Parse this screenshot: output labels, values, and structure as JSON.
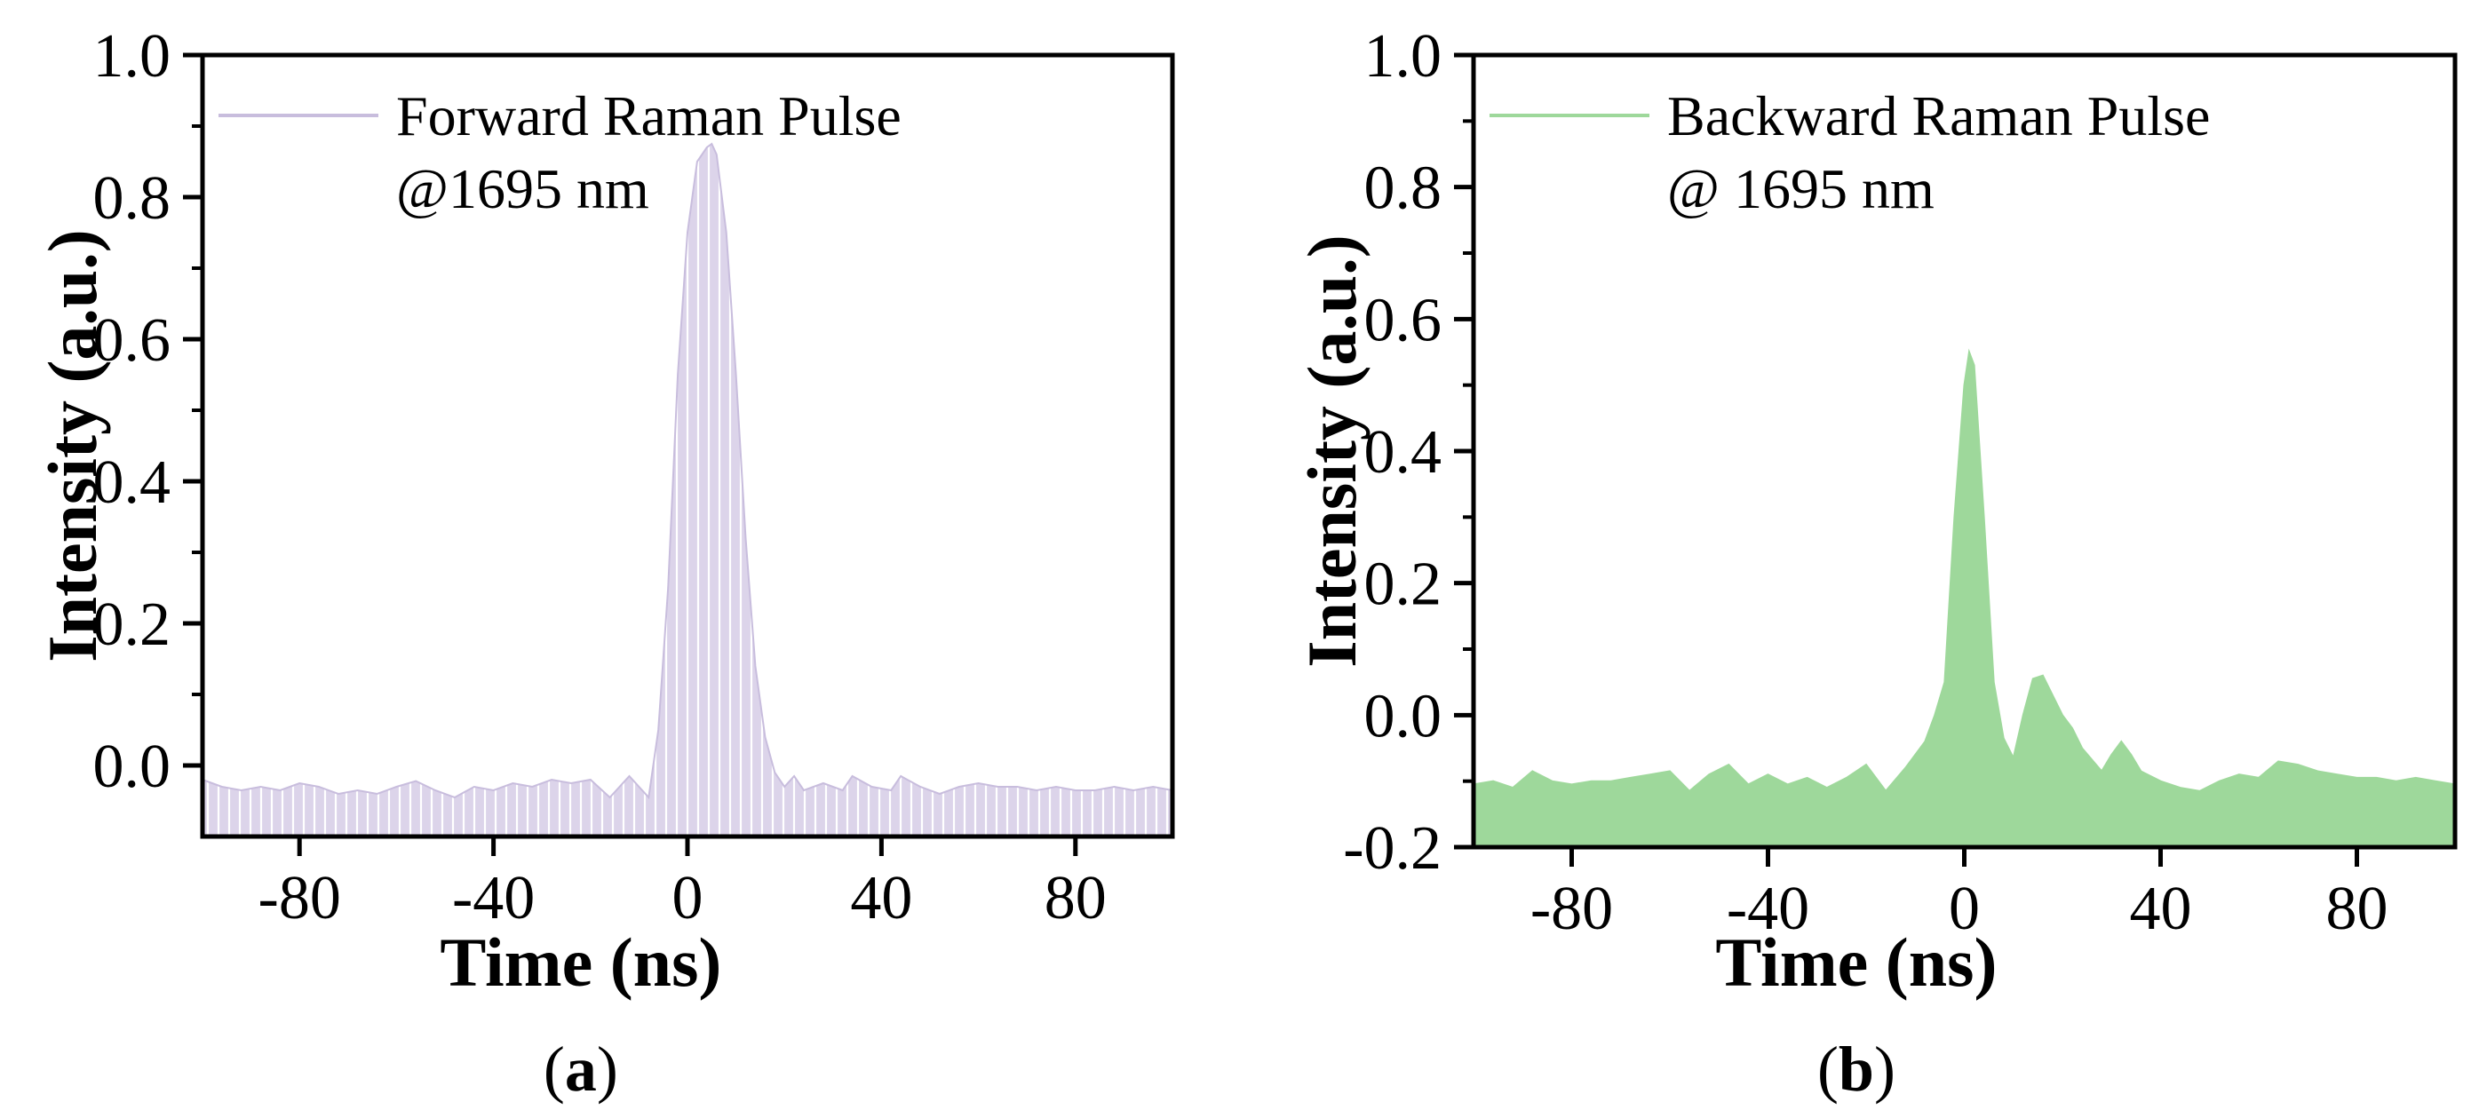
{
  "chart_data": [
    {
      "type": "area",
      "panel_label": "(a)",
      "panel_letter": "a",
      "xlabel": "Time (ns)",
      "ylabel": "Intensity (a.u.)",
      "xlim": [
        -100,
        100
      ],
      "ylim": [
        -0.1,
        1.0
      ],
      "xticks": [
        -80,
        -40,
        0,
        40,
        80
      ],
      "xtick_labels": [
        "-80",
        "-40",
        "0",
        "40",
        "80"
      ],
      "yticks": [
        0.0,
        0.2,
        0.4,
        0.6,
        0.8,
        1.0
      ],
      "ytick_labels": [
        "0.0",
        "0.2",
        "0.4",
        "0.6",
        "0.8",
        "1.0"
      ],
      "legend": {
        "position": "top-left",
        "entries": [
          "Forward Raman Pulse",
          "@1695 nm"
        ]
      },
      "color": "#d9d1e8",
      "edge_color": "#c8bddd",
      "hatched": true,
      "series": [
        {
          "name": "Forward Raman Pulse @1695 nm",
          "x": [
            -100,
            -96,
            -92,
            -88,
            -84,
            -80,
            -76,
            -72,
            -68,
            -64,
            -60,
            -56,
            -52,
            -48,
            -44,
            -40,
            -36,
            -32,
            -28,
            -24,
            -20,
            -16,
            -12,
            -8,
            -6,
            -4,
            -2,
            0,
            2,
            4,
            5,
            6,
            8,
            10,
            12,
            14,
            16,
            18,
            20,
            22,
            24,
            28,
            32,
            34,
            38,
            42,
            44,
            48,
            52,
            56,
            60,
            64,
            68,
            72,
            76,
            80,
            84,
            88,
            92,
            96,
            100
          ],
          "values": [
            -0.02,
            -0.03,
            -0.035,
            -0.03,
            -0.035,
            -0.025,
            -0.03,
            -0.04,
            -0.035,
            -0.04,
            -0.03,
            -0.022,
            -0.035,
            -0.045,
            -0.03,
            -0.035,
            -0.025,
            -0.03,
            -0.02,
            -0.025,
            -0.02,
            -0.045,
            -0.015,
            -0.045,
            0.05,
            0.25,
            0.55,
            0.75,
            0.85,
            0.87,
            0.875,
            0.86,
            0.75,
            0.55,
            0.32,
            0.14,
            0.04,
            -0.01,
            -0.03,
            -0.015,
            -0.035,
            -0.025,
            -0.035,
            -0.015,
            -0.03,
            -0.035,
            -0.015,
            -0.03,
            -0.04,
            -0.03,
            -0.025,
            -0.03,
            -0.03,
            -0.035,
            -0.03,
            -0.035,
            -0.035,
            -0.03,
            -0.035,
            -0.03,
            -0.035
          ]
        }
      ]
    },
    {
      "type": "area",
      "panel_label": "(b)",
      "panel_letter": "b",
      "xlabel": "Time (ns)",
      "ylabel": "Intensity (a.u.)",
      "xlim": [
        -100,
        100
      ],
      "ylim": [
        -0.2,
        1.0
      ],
      "xticks": [
        -80,
        -40,
        0,
        40,
        80
      ],
      "xtick_labels": [
        "-80",
        "-40",
        "0",
        "40",
        "80"
      ],
      "yticks": [
        -0.2,
        0.0,
        0.2,
        0.4,
        0.6,
        0.8,
        1.0
      ],
      "ytick_labels": [
        "-0.2",
        "0.0",
        "0.2",
        "0.4",
        "0.6",
        "0.8",
        "1.0"
      ],
      "legend": {
        "position": "top-left",
        "entries": [
          "Backward Raman Pulse",
          "@ 1695 nm"
        ]
      },
      "color": "#9ed89b",
      "edge_color": "#9ed89b",
      "hatched": false,
      "series": [
        {
          "name": "Backward Raman Pulse @ 1695 nm",
          "x": [
            -100,
            -96,
            -92,
            -88,
            -84,
            -80,
            -76,
            -72,
            -68,
            -64,
            -60,
            -56,
            -52,
            -48,
            -44,
            -40,
            -36,
            -32,
            -28,
            -24,
            -20,
            -16,
            -12,
            -8,
            -6,
            -4,
            -2,
            0,
            1,
            2,
            4,
            6,
            8,
            10,
            12,
            14,
            16,
            18,
            20,
            22,
            24,
            28,
            30,
            32,
            34,
            36,
            40,
            44,
            48,
            52,
            56,
            60,
            64,
            68,
            72,
            76,
            80,
            84,
            88,
            92,
            96,
            100
          ],
          "values": [
            -0.105,
            -0.1,
            -0.11,
            -0.085,
            -0.1,
            -0.105,
            -0.1,
            -0.1,
            -0.095,
            -0.09,
            -0.085,
            -0.115,
            -0.09,
            -0.075,
            -0.105,
            -0.09,
            -0.105,
            -0.095,
            -0.11,
            -0.095,
            -0.075,
            -0.115,
            -0.08,
            -0.04,
            0.0,
            0.05,
            0.3,
            0.5,
            0.55,
            0.53,
            0.3,
            0.05,
            -0.035,
            -0.065,
            0.0,
            0.055,
            0.06,
            0.03,
            0.0,
            -0.02,
            -0.05,
            -0.085,
            -0.06,
            -0.04,
            -0.06,
            -0.085,
            -0.1,
            -0.11,
            -0.115,
            -0.1,
            -0.09,
            -0.095,
            -0.07,
            -0.075,
            -0.085,
            -0.09,
            -0.095,
            -0.095,
            -0.1,
            -0.095,
            -0.1,
            -0.105
          ]
        }
      ]
    }
  ]
}
